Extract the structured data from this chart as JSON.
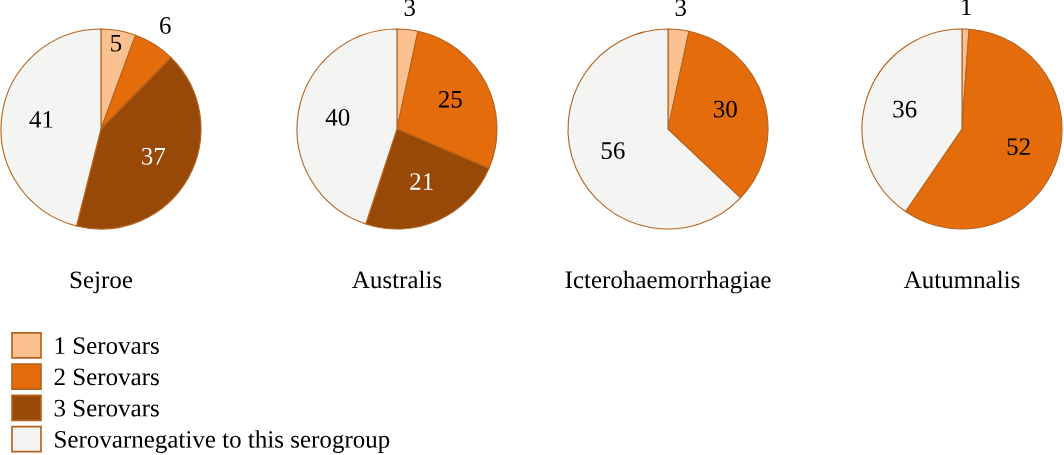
{
  "chart_data": [
    {
      "type": "pie",
      "title": "Sejroe",
      "categories": [
        "1 Serovars",
        "2 Serovars",
        "3 Serovars",
        "Serovarnegative to this serogroup"
      ],
      "values": [
        5,
        6,
        37,
        41
      ],
      "colors": [
        "#fac090",
        "#e46c0a",
        "#984807",
        "#f4f4f2"
      ],
      "data_labels": true,
      "legend": "bottom right"
    },
    {
      "type": "pie",
      "title": "Australis",
      "values": [
        3,
        25,
        21,
        40
      ],
      "colors": [
        "#fac090",
        "#e46c0a",
        "#984807",
        "#f4f4f2"
      ],
      "data_labels": true
    },
    {
      "type": "pie",
      "title": "Icterohaemorrhagiae",
      "values": [
        3,
        30,
        null,
        56
      ],
      "colors": [
        "#fac090",
        "#e46c0a",
        "#984807",
        "#f4f4f2"
      ],
      "data_labels": true
    },
    {
      "type": "pie",
      "title": "Autumnalis",
      "values": [
        1,
        52,
        null,
        36
      ],
      "colors": [
        "#fac090",
        "#e46c0a",
        "#984807",
        "#f4f4f2"
      ],
      "data_labels": true
    }
  ]
}
